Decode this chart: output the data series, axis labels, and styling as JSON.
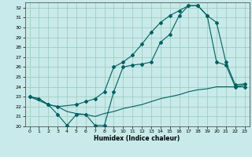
{
  "xlabel": "Humidex (Indice chaleur)",
  "bg_color": "#c8eaea",
  "grid_color": "#98c8b8",
  "line_color": "#006060",
  "xlim": [
    -0.5,
    23.5
  ],
  "ylim": [
    20,
    32.5
  ],
  "xticks": [
    0,
    1,
    2,
    3,
    4,
    5,
    6,
    7,
    8,
    9,
    10,
    11,
    12,
    13,
    14,
    15,
    16,
    17,
    18,
    19,
    20,
    21,
    22,
    23
  ],
  "yticks": [
    20,
    21,
    22,
    23,
    24,
    25,
    26,
    27,
    28,
    29,
    30,
    31,
    32
  ],
  "line1_x": [
    0,
    1,
    2,
    3,
    4,
    5,
    6,
    7,
    8,
    9,
    10,
    11,
    12,
    13,
    14,
    15,
    16,
    17,
    18,
    19,
    20,
    21,
    22,
    23
  ],
  "line1_y": [
    23.0,
    22.8,
    22.2,
    22.0,
    21.5,
    21.3,
    21.2,
    21.0,
    21.3,
    21.5,
    21.8,
    22.0,
    22.2,
    22.5,
    22.8,
    23.0,
    23.2,
    23.5,
    23.7,
    23.8,
    24.0,
    24.0,
    24.0,
    24.2
  ],
  "line2_x": [
    0,
    1,
    2,
    3,
    4,
    5,
    6,
    7,
    8,
    9,
    10,
    11,
    12,
    13,
    14,
    15,
    16,
    17,
    18,
    19,
    20,
    21,
    22,
    23
  ],
  "line2_y": [
    23.0,
    22.8,
    22.2,
    21.2,
    20.1,
    21.2,
    21.2,
    20.1,
    20.1,
    23.5,
    26.0,
    26.2,
    26.3,
    26.5,
    28.5,
    29.3,
    31.2,
    32.2,
    32.2,
    31.2,
    26.5,
    26.2,
    24.0,
    24.0
  ],
  "line3_x": [
    0,
    2,
    3,
    5,
    6,
    7,
    8,
    9,
    10,
    11,
    12,
    13,
    14,
    15,
    16,
    17,
    18,
    19,
    20,
    21,
    22,
    23
  ],
  "line3_y": [
    23.0,
    22.2,
    22.0,
    22.2,
    22.5,
    22.8,
    23.5,
    26.0,
    26.5,
    27.2,
    28.3,
    29.5,
    30.5,
    31.2,
    31.7,
    32.2,
    32.2,
    31.2,
    30.5,
    26.5,
    24.2,
    24.3
  ]
}
